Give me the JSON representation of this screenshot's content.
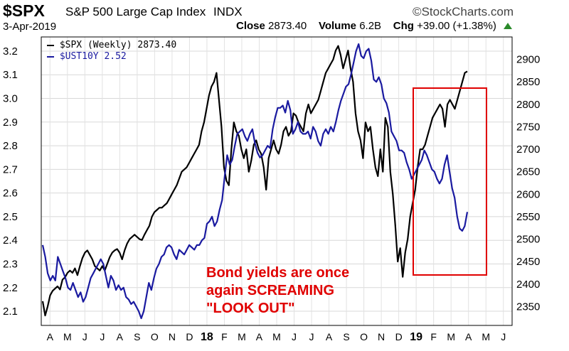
{
  "header": {
    "symbol": "$SPX",
    "index_name": "S&P 500 Large Cap Index",
    "exchange": "INDX",
    "brand": "©StockCharts.com",
    "date": "3-Apr-2019",
    "close_label": "Close",
    "close_value": "2873.40",
    "volume_label": "Volume",
    "volume_value": "6.2B",
    "chg_label": "Chg",
    "chg_value": "+39.00 (+1.38%)",
    "chg_icon": "up-triangle-icon",
    "chg_color": "#2a8a2a"
  },
  "annotation": {
    "lines": [
      "Bond yields are once",
      "again SCREAMING",
      "\"LOOK OUT\""
    ],
    "color": "#e00000"
  },
  "chart_data": {
    "type": "line",
    "x_tick_labels": [
      "A",
      "M",
      "J",
      "J",
      "A",
      "S",
      "O",
      "N",
      "D",
      "18",
      "F",
      "M",
      "A",
      "M",
      "J",
      "J",
      "A",
      "S",
      "O",
      "N",
      "D",
      "19",
      "F",
      "M",
      "A",
      "M",
      "J"
    ],
    "left_axis": {
      "ticks": [
        2.1,
        2.2,
        2.3,
        2.4,
        2.5,
        2.6,
        2.7,
        2.8,
        2.9,
        3.0,
        3.1,
        3.2
      ],
      "ylim": [
        2.04,
        3.26
      ]
    },
    "right_axis": {
      "ticks": [
        2350,
        2400,
        2450,
        2500,
        2550,
        2600,
        2650,
        2700,
        2750,
        2800,
        2850,
        2900
      ],
      "ylim": [
        2308,
        2950
      ]
    },
    "grid": true,
    "legend_position": "top-left",
    "series": [
      {
        "name": "$SPX (Weekly) 2873.40",
        "axis": "right",
        "color": "#000000",
        "values": [
          2362,
          2330,
          2350,
          2375,
          2385,
          2390,
          2395,
          2388,
          2410,
          2415,
          2425,
          2430,
          2425,
          2435,
          2420,
          2440,
          2458,
          2470,
          2475,
          2465,
          2455,
          2440,
          2435,
          2430,
          2440,
          2430,
          2445,
          2460,
          2470,
          2475,
          2478,
          2470,
          2455,
          2475,
          2490,
          2500,
          2505,
          2510,
          2505,
          2500,
          2498,
          2510,
          2520,
          2530,
          2550,
          2560,
          2565,
          2570,
          2570,
          2575,
          2580,
          2590,
          2600,
          2610,
          2620,
          2635,
          2650,
          2655,
          2660,
          2670,
          2680,
          2690,
          2700,
          2710,
          2740,
          2760,
          2790,
          2820,
          2840,
          2850,
          2870,
          2810,
          2750,
          2660,
          2630,
          2620,
          2700,
          2760,
          2740,
          2730,
          2700,
          2680,
          2700,
          2650,
          2675,
          2710,
          2720,
          2700,
          2690,
          2660,
          2610,
          2680,
          2700,
          2720,
          2700,
          2690,
          2710,
          2740,
          2750,
          2730,
          2740,
          2780,
          2775,
          2760,
          2750,
          2740,
          2780,
          2800,
          2780,
          2790,
          2800,
          2810,
          2830,
          2850,
          2870,
          2880,
          2890,
          2900,
          2920,
          2930,
          2910,
          2880,
          2900,
          2920,
          2880,
          2850,
          2780,
          2740,
          2720,
          2680,
          2760,
          2740,
          2750,
          2700,
          2660,
          2640,
          2700,
          2650,
          2770,
          2750,
          2650,
          2600,
          2530,
          2450,
          2480,
          2416,
          2470,
          2500,
          2550,
          2580,
          2610,
          2660,
          2700,
          2700,
          2710,
          2730,
          2750,
          2770,
          2780,
          2790,
          2800,
          2790,
          2750,
          2800,
          2810,
          2800,
          2790,
          2810,
          2830,
          2850,
          2870,
          2873.4
        ]
      },
      {
        "name": "$UST10Y 2.52",
        "axis": "left",
        "color": "#1a1aa0",
        "values": [
          2.38,
          2.33,
          2.26,
          2.23,
          2.25,
          2.23,
          2.33,
          2.3,
          2.27,
          2.24,
          2.2,
          2.19,
          2.22,
          2.19,
          2.16,
          2.18,
          2.14,
          2.16,
          2.2,
          2.24,
          2.26,
          2.28,
          2.3,
          2.32,
          2.3,
          2.25,
          2.2,
          2.25,
          2.23,
          2.19,
          2.21,
          2.19,
          2.2,
          2.16,
          2.15,
          2.13,
          2.14,
          2.12,
          2.1,
          2.07,
          2.1,
          2.16,
          2.22,
          2.19,
          2.24,
          2.28,
          2.3,
          2.33,
          2.34,
          2.37,
          2.38,
          2.37,
          2.34,
          2.32,
          2.36,
          2.35,
          2.34,
          2.36,
          2.38,
          2.37,
          2.36,
          2.38,
          2.38,
          2.4,
          2.41,
          2.47,
          2.48,
          2.5,
          2.46,
          2.48,
          2.53,
          2.57,
          2.67,
          2.76,
          2.72,
          2.74,
          2.8,
          2.85,
          2.86,
          2.87,
          2.84,
          2.82,
          2.85,
          2.87,
          2.81,
          2.77,
          2.75,
          2.76,
          2.78,
          2.8,
          2.79,
          2.87,
          2.92,
          2.96,
          2.96,
          2.97,
          2.94,
          2.99,
          2.95,
          2.85,
          2.87,
          2.9,
          2.86,
          2.85,
          2.85,
          2.86,
          2.83,
          2.88,
          2.86,
          2.82,
          2.8,
          2.85,
          2.87,
          2.85,
          2.88,
          2.86,
          2.9,
          2.95,
          2.99,
          3.02,
          3.05,
          3.06,
          3.1,
          3.15,
          3.2,
          3.23,
          3.18,
          3.17,
          3.2,
          3.21,
          3.16,
          3.08,
          3.07,
          3.09,
          3.06,
          3.0,
          2.98,
          2.94,
          2.86,
          2.84,
          2.82,
          2.78,
          2.78,
          2.77,
          2.73,
          2.7,
          2.66,
          2.68,
          2.7,
          2.72,
          2.74,
          2.78,
          2.76,
          2.73,
          2.7,
          2.69,
          2.66,
          2.64,
          2.66,
          2.72,
          2.76,
          2.69,
          2.62,
          2.58,
          2.5,
          2.45,
          2.44,
          2.46,
          2.52
        ]
      }
    ]
  }
}
